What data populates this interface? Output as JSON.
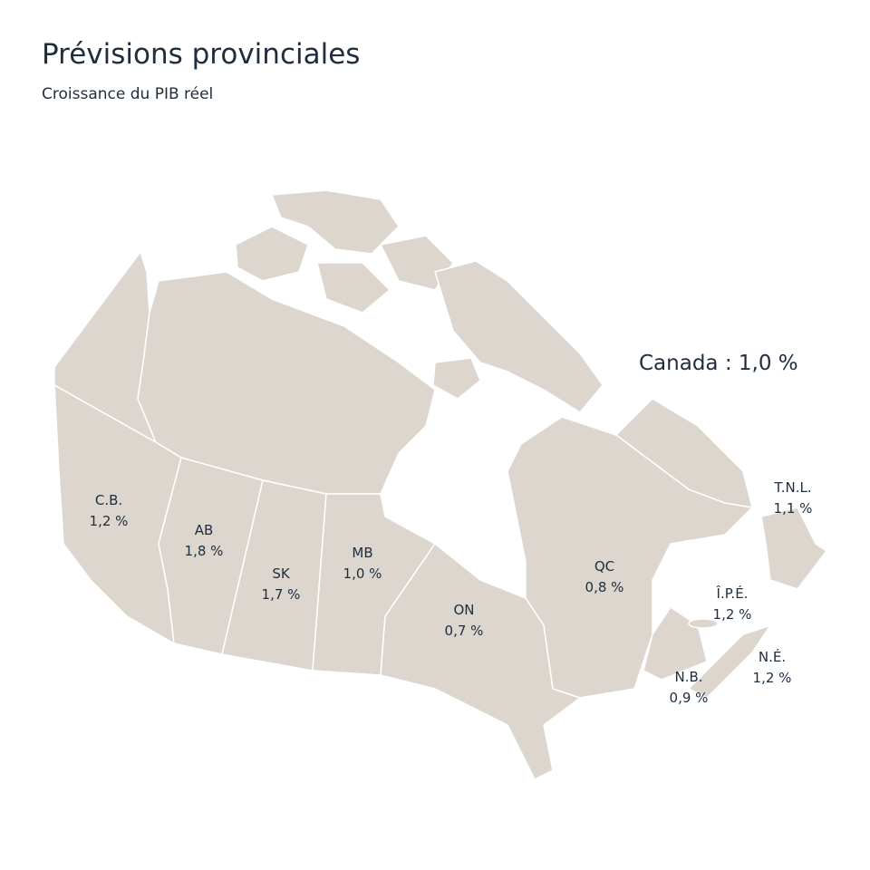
{
  "header": {
    "title": "Prévisions provinciales",
    "subtitle": "Croissance du PIB réel"
  },
  "national": "Canada : 1,0 %",
  "provinces": [
    {
      "abbr": "C.B.",
      "growth": "1,2 %"
    },
    {
      "abbr": "AB",
      "growth": "1,8 %"
    },
    {
      "abbr": "SK",
      "growth": "1,7 %"
    },
    {
      "abbr": "MB",
      "growth": "1,0 %"
    },
    {
      "abbr": "ON",
      "growth": "0,7 %"
    },
    {
      "abbr": "QC",
      "growth": "0,8 %"
    },
    {
      "abbr": "T.N.L.",
      "growth": "1,1 %"
    },
    {
      "abbr": "Î.P.É.",
      "growth": "1,2 %"
    },
    {
      "abbr": "N.É.",
      "growth": "1,2 %"
    },
    {
      "abbr": "N.B.",
      "growth": "0,9 %"
    }
  ]
}
